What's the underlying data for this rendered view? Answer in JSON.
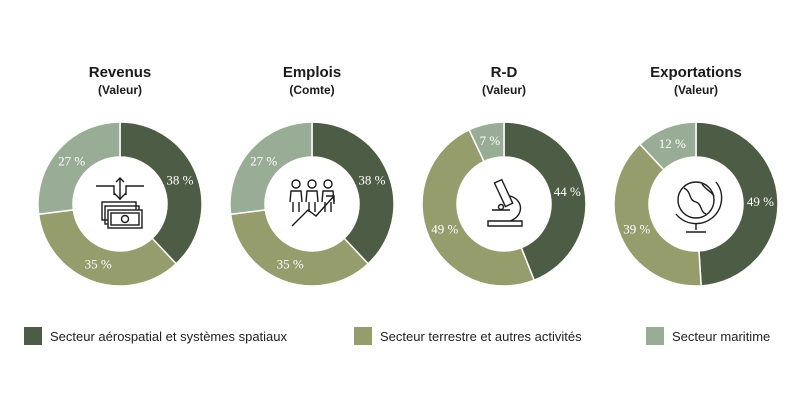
{
  "colors": {
    "aero": "#4d5c44",
    "terre": "#959d6d",
    "mar": "#99ad96",
    "icon": "#1a1a1a"
  },
  "chart_data": [
    {
      "type": "pie",
      "title": "Revenus",
      "subtitle": "(Valeur)",
      "icon": "money-icon",
      "categories": [
        "Secteur aérospatial et systèmes spatiaux",
        "Secteur terrestre et autres activités",
        "Secteur maritime"
      ],
      "values": [
        38,
        35,
        27
      ],
      "labels": [
        "38 %",
        "35 %",
        "27 %"
      ]
    },
    {
      "type": "pie",
      "title": "Emplois",
      "subtitle": "(Comte)",
      "icon": "people-growth-icon",
      "categories": [
        "Secteur aérospatial et systèmes spatiaux",
        "Secteur terrestre et autres activités",
        "Secteur maritime"
      ],
      "values": [
        38,
        35,
        27
      ],
      "labels": [
        "38 %",
        "35 %",
        "27 %"
      ]
    },
    {
      "type": "pie",
      "title": "R-D",
      "subtitle": "(Valeur)",
      "icon": "microscope-icon",
      "categories": [
        "Secteur aérospatial et systèmes spatiaux",
        "Secteur terrestre et autres activités",
        "Secteur maritime"
      ],
      "values": [
        44,
        49,
        7
      ],
      "labels": [
        "44 %",
        "49 %",
        "7 %"
      ]
    },
    {
      "type": "pie",
      "title": "Exportations",
      "subtitle": "(Valeur)",
      "icon": "globe-icon",
      "categories": [
        "Secteur aérospatial et systèmes spatiaux",
        "Secteur terrestre et autres activités",
        "Secteur maritime"
      ],
      "values": [
        49,
        39,
        12
      ],
      "labels": [
        "49 %",
        "39 %",
        "12 %"
      ]
    }
  ],
  "legend": [
    {
      "label": "Secteur aérospatial et systèmes spatiaux",
      "color": "#4d5c44"
    },
    {
      "label": "Secteur terrestre et autres activités",
      "color": "#959d6d"
    },
    {
      "label": "Secteur maritime",
      "color": "#99ad96"
    }
  ]
}
